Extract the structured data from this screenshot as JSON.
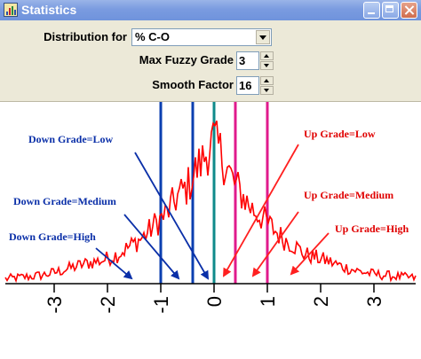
{
  "window": {
    "title": "Statistics",
    "icon": "statistics-app-icon",
    "controls": [
      "minimize-icon",
      "maximize-icon",
      "close-icon"
    ]
  },
  "controls": {
    "distribution_label": "Distribution for",
    "distribution_value": "% C-O",
    "max_fuzzy_label": "Max Fuzzy Grade",
    "max_fuzzy_value": "3",
    "smooth_label": "Smooth Factor",
    "smooth_value": "16"
  },
  "colors": {
    "histogram": "#ff0000",
    "down_lines": "#0b3fb0",
    "center_line": "#0f8a8a",
    "up_lines": "#e01a8c",
    "down_text": "#0a2fa8",
    "up_text": "#e00000"
  },
  "annotations": {
    "down_low": "Down Grade=Low",
    "down_medium": "Down Grade=Medium",
    "down_high": "Down Grade=High",
    "up_low": "Up Grade=Low",
    "up_medium": "Up Grade=Medium",
    "up_high": "Up Grade=High"
  },
  "chart_data": {
    "type": "line",
    "title": "",
    "xlabel": "",
    "ylabel": "",
    "xlim": [
      -3.9,
      3.9
    ],
    "ylim": [
      0,
      1
    ],
    "x_ticks": [
      -3,
      -2,
      -1,
      0,
      1,
      2,
      3
    ],
    "x_tick_labels": [
      "-3",
      "-2",
      "-1",
      "0",
      "1",
      "2",
      "3"
    ],
    "grade_lines": [
      {
        "x": -1.0,
        "side": "down"
      },
      {
        "x": -0.4,
        "side": "down"
      },
      {
        "x": 0.0,
        "side": "center"
      },
      {
        "x": 0.4,
        "side": "up"
      },
      {
        "x": 1.0,
        "side": "up"
      }
    ],
    "series": [
      {
        "x": [
          -3.9,
          -3.6,
          -3.3,
          -3.0,
          -2.7,
          -2.4,
          -2.1,
          -1.8,
          -1.5,
          -1.3,
          -1.1,
          -0.9,
          -0.7,
          -0.5,
          -0.35,
          -0.2,
          -0.1,
          0.0,
          0.1,
          0.2,
          0.35,
          0.5,
          0.7,
          0.9,
          1.1,
          1.3,
          1.5,
          1.7,
          1.9,
          2.1,
          2.4,
          2.7,
          3.0,
          3.3,
          3.6,
          3.9
        ],
        "values": [
          0.02,
          0.03,
          0.04,
          0.06,
          0.09,
          0.12,
          0.14,
          0.18,
          0.25,
          0.3,
          0.38,
          0.44,
          0.55,
          0.62,
          0.72,
          0.8,
          0.88,
          0.92,
          0.86,
          0.78,
          0.66,
          0.58,
          0.48,
          0.42,
          0.35,
          0.28,
          0.24,
          0.18,
          0.16,
          0.14,
          0.1,
          0.07,
          0.05,
          0.04,
          0.03,
          0.02
        ]
      }
    ]
  }
}
